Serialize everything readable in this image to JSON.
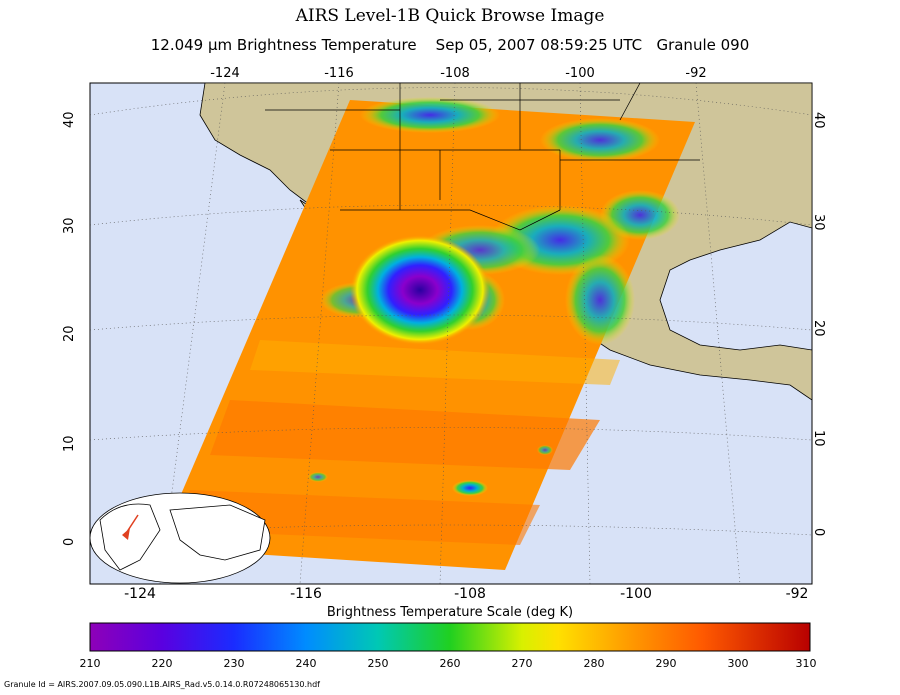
{
  "title": "AIRS Level-1B Quick Browse Image",
  "subtitle": "12.049 μm Brightness Temperature    Sep 05, 2007 08:59:25 UTC   Granule 090",
  "lon_ticks_top": [
    "-124",
    "-116",
    "-108",
    "-100",
    "-92"
  ],
  "lon_ticks_bottom": [
    "-124",
    "-116",
    "-108",
    "-100",
    "-92"
  ],
  "lat_ticks": [
    "40",
    "30",
    "20",
    "10",
    "0"
  ],
  "scale": {
    "label": "Brightness Temperature Scale (deg K)",
    "ticks": [
      "210",
      "220",
      "230",
      "240",
      "250",
      "260",
      "270",
      "280",
      "290",
      "300",
      "310"
    ]
  },
  "granule_id": "Granule Id = AIRS.2007.09.05.090.L1B.AIRS_Rad.v5.0.14.0.R07248065130.hdf",
  "colors": {
    "ocean": "#d8e2f7",
    "land": "#cfc59a",
    "swath_base": "#ff9200",
    "swath_warm": "#ff7a00",
    "storm_core": "#8a00cc"
  }
}
